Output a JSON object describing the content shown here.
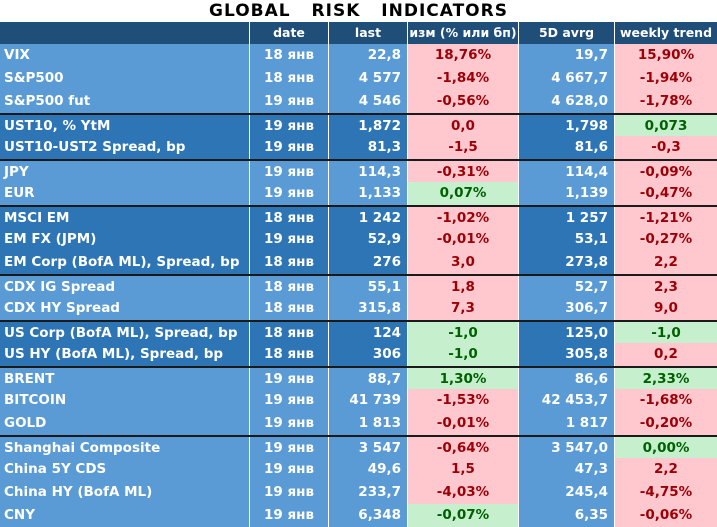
{
  "title": "GLOBAL   RISK   INDICATORS",
  "headers": [
    "",
    "date",
    "last",
    "изм (% или бп)",
    "5D avrg",
    "weekly trend"
  ],
  "groups": [
    {
      "shade": "light",
      "rows": [
        {
          "name": "VIX",
          "date": "18 янв",
          "last": "22,8",
          "change": "18,76%",
          "change_dir": "neg",
          "avg5d": "19,7",
          "trend": "15,90%",
          "trend_dir": "neg"
        },
        {
          "name": "S&P500",
          "date": "18 янв",
          "last": "4 577",
          "change": "-1,84%",
          "change_dir": "neg",
          "avg5d": "4 667,7",
          "trend": "-1,94%",
          "trend_dir": "neg"
        },
        {
          "name": "S&P500 fut",
          "date": "19 янв",
          "last": "4 546",
          "change": "-0,56%",
          "change_dir": "neg",
          "avg5d": "4 628,0",
          "trend": "-1,78%",
          "trend_dir": "neg"
        }
      ]
    },
    {
      "shade": "dark",
      "rows": [
        {
          "name": "UST10, % YtM",
          "date": "19 янв",
          "last": "1,872",
          "change": "0,0",
          "change_dir": "neg",
          "avg5d": "1,798",
          "trend": "0,073",
          "trend_dir": "pos"
        },
        {
          "name": "UST10-UST2 Spread, bp",
          "date": "19 янв",
          "last": "81,3",
          "change": "-1,5",
          "change_dir": "neg",
          "avg5d": "81,6",
          "trend": "-0,3",
          "trend_dir": "neg"
        }
      ]
    },
    {
      "shade": "light",
      "rows": [
        {
          "name": "JPY",
          "date": "19 янв",
          "last": "114,3",
          "change": "-0,31%",
          "change_dir": "neg",
          "avg5d": "114,4",
          "trend": "-0,09%",
          "trend_dir": "neg"
        },
        {
          "name": "EUR",
          "date": "19 янв",
          "last": "1,133",
          "change": "0,07%",
          "change_dir": "pos",
          "avg5d": "1,139",
          "trend": "-0,47%",
          "trend_dir": "neg"
        }
      ]
    },
    {
      "shade": "dark",
      "rows": [
        {
          "name": "MSCI EM",
          "date": "18 янв",
          "last": "1 242",
          "change": "-1,02%",
          "change_dir": "neg",
          "avg5d": "1 257",
          "trend": "-1,21%",
          "trend_dir": "neg"
        },
        {
          "name": "EM FX (JPM)",
          "date": "19 янв",
          "last": "52,9",
          "change": "-0,01%",
          "change_dir": "neg",
          "avg5d": "53,1",
          "trend": "-0,27%",
          "trend_dir": "neg"
        },
        {
          "name": "EM Corp (BofA ML), Spread, bp",
          "date": "18 янв",
          "last": "276",
          "change": "3,0",
          "change_dir": "neg",
          "avg5d": "273,8",
          "trend": "2,2",
          "trend_dir": "neg"
        }
      ]
    },
    {
      "shade": "light",
      "rows": [
        {
          "name": "CDX IG Spread",
          "date": "18 янв",
          "last": "55,1",
          "change": "1,8",
          "change_dir": "neg",
          "avg5d": "52,7",
          "trend": "2,3",
          "trend_dir": "neg"
        },
        {
          "name": "CDX HY Spread",
          "date": "18 янв",
          "last": "315,8",
          "change": "7,3",
          "change_dir": "neg",
          "avg5d": "306,7",
          "trend": "9,0",
          "trend_dir": "neg"
        }
      ]
    },
    {
      "shade": "dark",
      "rows": [
        {
          "name": "US Corp (BofA ML), Spread, bp",
          "date": "18 янв",
          "last": "124",
          "change": "-1,0",
          "change_dir": "pos",
          "avg5d": "125,0",
          "trend": "-1,0",
          "trend_dir": "pos"
        },
        {
          "name": "US HY (BofA ML), Spread, bp",
          "date": "18 янв",
          "last": "306",
          "change": "-1,0",
          "change_dir": "pos",
          "avg5d": "305,8",
          "trend": "0,2",
          "trend_dir": "neg"
        }
      ]
    },
    {
      "shade": "light",
      "rows": [
        {
          "name": "BRENT",
          "date": "19 янв",
          "last": "88,7",
          "change": "1,30%",
          "change_dir": "pos",
          "avg5d": "86,6",
          "trend": "2,33%",
          "trend_dir": "pos"
        },
        {
          "name": "BITCOIN",
          "date": "19 янв",
          "last": "41 739",
          "change": "-1,53%",
          "change_dir": "neg",
          "avg5d": "42 453,7",
          "trend": "-1,68%",
          "trend_dir": "neg"
        },
        {
          "name": "GOLD",
          "date": "19 янв",
          "last": "1 813",
          "change": "-0,01%",
          "change_dir": "neg",
          "avg5d": "1 817",
          "trend": "-0,20%",
          "trend_dir": "neg"
        }
      ]
    },
    {
      "shade": "light",
      "rows": [
        {
          "name": "Shanghai Composite",
          "date": "19 янв",
          "last": "3 547",
          "change": "-0,64%",
          "change_dir": "neg",
          "avg5d": "3 547,0",
          "trend": "0,00%",
          "trend_dir": "pos"
        },
        {
          "name": "China 5Y CDS",
          "date": "19 янв",
          "last": "49,6",
          "change": "1,5",
          "change_dir": "neg",
          "avg5d": "47,3",
          "trend": "2,2",
          "trend_dir": "neg"
        },
        {
          "name": "China HY (BofA ML)",
          "date": "19 янв",
          "last": "233,7",
          "change": "-4,03%",
          "change_dir": "neg",
          "avg5d": "245,4",
          "trend": "-4,75%",
          "trend_dir": "neg"
        },
        {
          "name": "CNY",
          "date": "19 янв",
          "last": "6,348",
          "change": "-0,07%",
          "change_dir": "pos",
          "avg5d": "6,35",
          "trend": "-0,06%",
          "trend_dir": "neg"
        }
      ]
    }
  ],
  "colors": {
    "header_bg": "#1f4e79",
    "light_row": "#5b9bd5",
    "dark_row": "#2e75b6",
    "pos_bg": "#c6efce",
    "pos_text": "#006100",
    "neg_bg": "#ffc7ce",
    "neg_text": "#9c0006"
  }
}
